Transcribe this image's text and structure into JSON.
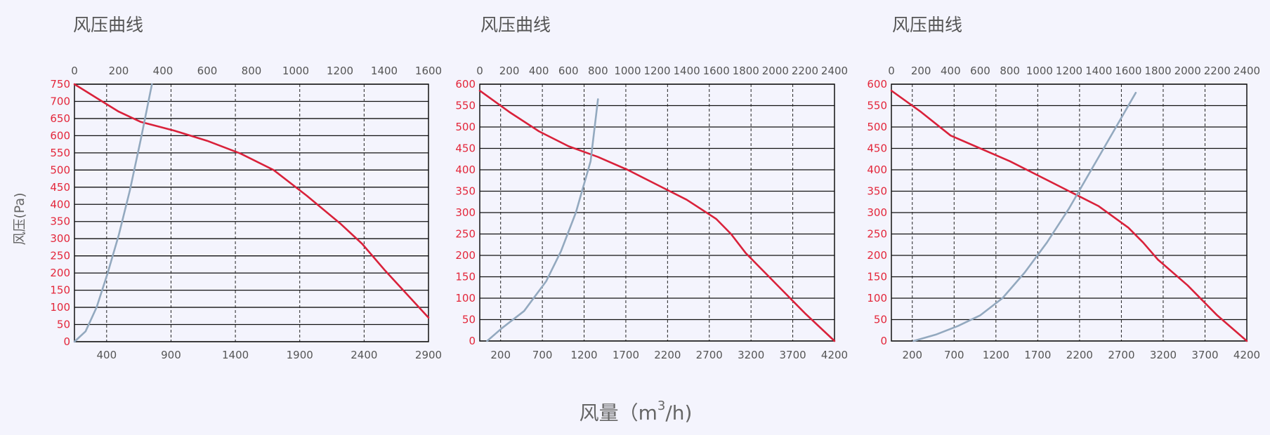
{
  "axis_label_y": "风压(Pa)",
  "axis_label_x": {
    "prefix": "风量（m",
    "superscript": "3",
    "suffix": "/h)"
  },
  "colors": {
    "pressure_curve": "#d9213a",
    "system_curve": "#93a9bf",
    "y_tick_text": "#e3263a"
  },
  "chart_data": [
    {
      "type": "line",
      "title": "风压曲线",
      "top_ticks": [
        "0",
        "200",
        "400",
        "600",
        "800",
        "1000",
        "1200",
        "1400",
        "1600"
      ],
      "bottom_ticks": [
        "400",
        "900",
        "1400",
        "1900",
        "2400",
        "2900"
      ],
      "y_ticks": [
        "0",
        "50",
        "100",
        "150",
        "200",
        "250",
        "300",
        "350",
        "400",
        "450",
        "500",
        "550",
        "600",
        "650",
        "700",
        "750"
      ],
      "xlim": [
        0,
        1600
      ],
      "ylim": [
        0,
        750
      ],
      "grid": true,
      "series": [
        {
          "role": "pressure",
          "x": [
            0,
            100,
            200,
            300,
            450,
            600,
            750,
            900,
            1050,
            1200,
            1300,
            1400,
            1500,
            1600
          ],
          "y": [
            750,
            710,
            670,
            640,
            615,
            585,
            548,
            500,
            425,
            345,
            285,
            210,
            140,
            70
          ]
        },
        {
          "role": "system",
          "x": [
            0,
            50,
            100,
            150,
            200,
            250,
            300,
            350
          ],
          "y": [
            0,
            30,
            100,
            200,
            310,
            440,
            590,
            750
          ]
        }
      ]
    },
    {
      "type": "line",
      "title": "风压曲线",
      "top_ticks": [
        "0",
        "200",
        "400",
        "600",
        "800",
        "1000",
        "1200",
        "1400",
        "1600",
        "1800",
        "2000",
        "2200",
        "2400"
      ],
      "bottom_ticks": [
        "200",
        "700",
        "1200",
        "1700",
        "2200",
        "2700",
        "3200",
        "3700",
        "4200"
      ],
      "y_ticks": [
        "0",
        "50",
        "100",
        "150",
        "200",
        "250",
        "300",
        "350",
        "400",
        "450",
        "500",
        "550",
        "600"
      ],
      "xlim": [
        0,
        2400
      ],
      "ylim": [
        0,
        600
      ],
      "grid": true,
      "series": [
        {
          "role": "pressure",
          "x": [
            0,
            200,
            400,
            600,
            800,
            1000,
            1200,
            1400,
            1600,
            1700,
            1800,
            2000,
            2200,
            2400
          ],
          "y": [
            585,
            535,
            490,
            455,
            430,
            400,
            365,
            330,
            285,
            250,
            205,
            135,
            65,
            0
          ]
        },
        {
          "role": "system",
          "x": [
            50,
            150,
            300,
            450,
            550,
            650,
            750,
            800
          ],
          "y": [
            0,
            30,
            70,
            140,
            210,
            300,
            420,
            565
          ]
        }
      ]
    },
    {
      "type": "line",
      "title": "风压曲线",
      "top_ticks": [
        "0",
        "200",
        "400",
        "600",
        "800",
        "1000",
        "1200",
        "1400",
        "1600",
        "1800",
        "2000",
        "2200",
        "2400"
      ],
      "bottom_ticks": [
        "200",
        "700",
        "1200",
        "1700",
        "2200",
        "2700",
        "3200",
        "3700",
        "4200"
      ],
      "y_ticks": [
        "0",
        "50",
        "100",
        "150",
        "200",
        "250",
        "300",
        "350",
        "400",
        "450",
        "500",
        "550",
        "600"
      ],
      "xlim": [
        0,
        2400
      ],
      "ylim": [
        0,
        600
      ],
      "grid": true,
      "series": [
        {
          "role": "pressure",
          "x": [
            0,
            200,
            400,
            600,
            800,
            1000,
            1200,
            1400,
            1600,
            1700,
            1800,
            2000,
            2200,
            2400
          ],
          "y": [
            585,
            535,
            480,
            450,
            420,
            385,
            350,
            315,
            265,
            230,
            190,
            130,
            60,
            0
          ]
        },
        {
          "role": "system",
          "x": [
            150,
            300,
            450,
            600,
            750,
            900,
            1050,
            1200,
            1350,
            1500,
            1650
          ],
          "y": [
            0,
            15,
            35,
            60,
            100,
            160,
            230,
            310,
            400,
            490,
            580
          ]
        }
      ]
    }
  ]
}
